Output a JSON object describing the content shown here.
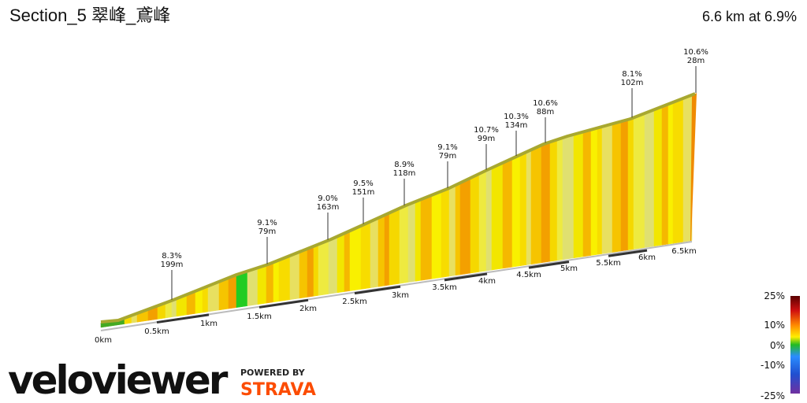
{
  "header": {
    "title": "Section_5 翠峰_鳶峰",
    "summary": "6.6 km at 6.9%"
  },
  "annotations": [
    {
      "grade": "8.3%",
      "length": "199m"
    },
    {
      "grade": "9.1%",
      "length": "79m"
    },
    {
      "grade": "9.0%",
      "length": "163m"
    },
    {
      "grade": "9.5%",
      "length": "151m"
    },
    {
      "grade": "8.9%",
      "length": "118m"
    },
    {
      "grade": "9.1%",
      "length": "79m"
    },
    {
      "grade": "10.7%",
      "length": "99m"
    },
    {
      "grade": "10.3%",
      "length": "134m"
    },
    {
      "grade": "10.6%",
      "length": "88m"
    },
    {
      "grade": "8.1%",
      "length": "102m"
    },
    {
      "grade": "10.6%",
      "length": "28m"
    }
  ],
  "distance_labels": [
    "0km",
    "0.5km",
    "1km",
    "1.5km",
    "2km",
    "2.5km",
    "3km",
    "3.5km",
    "4km",
    "4.5km",
    "5km",
    "5.5km",
    "6km",
    "6.5km"
  ],
  "legend_labels": [
    "25%",
    "10%",
    "0%",
    "-10%",
    "-25%"
  ],
  "branding": {
    "logo": "veloviewer",
    "powered": "POWERED BY",
    "partner": "STRAVA"
  }
}
